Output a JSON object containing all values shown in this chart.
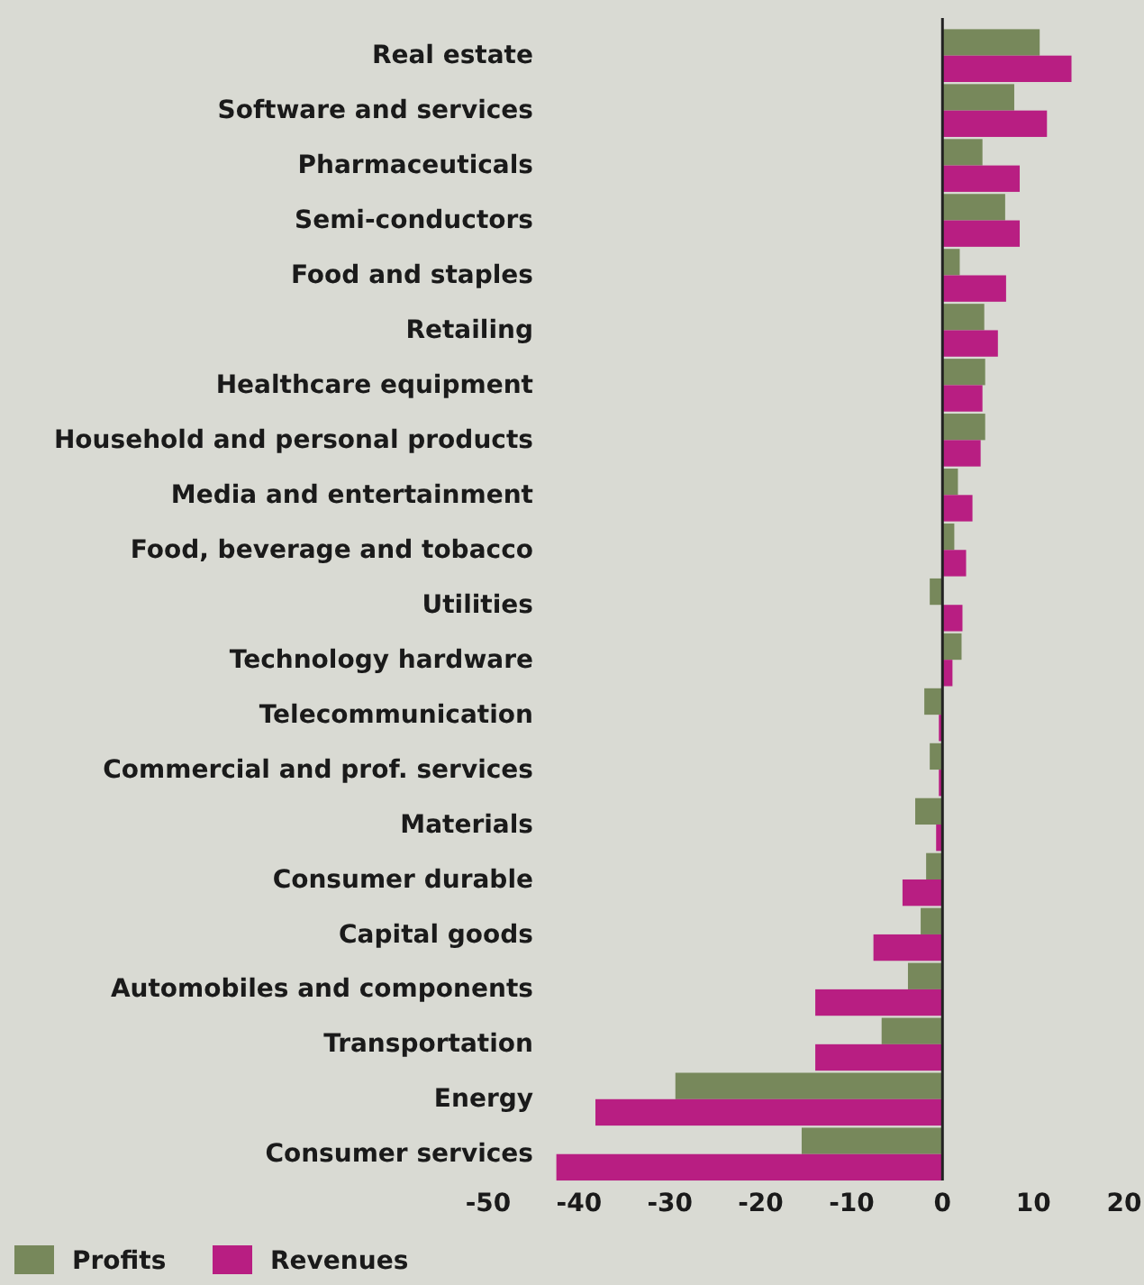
{
  "chart_data": {
    "type": "bar",
    "orientation": "horizontal",
    "categories": [
      "Real estate",
      "Software and services",
      "Pharmaceuticals",
      "Semi-conductors",
      "Food and staples",
      "Retailing",
      "Healthcare equipment",
      "Household and personal products",
      "Media and entertainment",
      "Food, beverage and tobacco",
      "Utilities",
      "Technology hardware",
      "Telecommunication",
      "Commercial and prof. services",
      "Materials",
      "Consumer durable",
      "Capital goods",
      "Automobiles and components",
      "Transportation",
      "Energy",
      "Consumer services"
    ],
    "series": [
      {
        "name": "Profits",
        "color": "#77885b",
        "values": [
          10.7,
          7.9,
          4.4,
          6.9,
          1.9,
          4.6,
          4.7,
          4.7,
          1.7,
          1.3,
          -1.4,
          2.1,
          -2.0,
          -1.4,
          -3.0,
          -1.8,
          -2.4,
          -3.8,
          -6.7,
          -29.4,
          -15.5
        ]
      },
      {
        "name": "Revenues",
        "color": "#b81e82",
        "values": [
          14.2,
          11.5,
          8.5,
          8.5,
          7.0,
          6.1,
          4.4,
          4.2,
          3.3,
          2.6,
          2.2,
          1.1,
          -0.4,
          -0.4,
          -0.7,
          -4.4,
          -7.6,
          -14.0,
          -14.0,
          -38.2,
          -42.5
        ]
      }
    ],
    "xlim": [
      -50,
      20
    ],
    "xticks": [
      -50,
      -40,
      -30,
      -20,
      -10,
      0,
      10,
      20
    ],
    "ref_lines": [
      {
        "axis": "x",
        "value": 0,
        "color": "#222222"
      }
    ],
    "legend": "bottom left"
  }
}
